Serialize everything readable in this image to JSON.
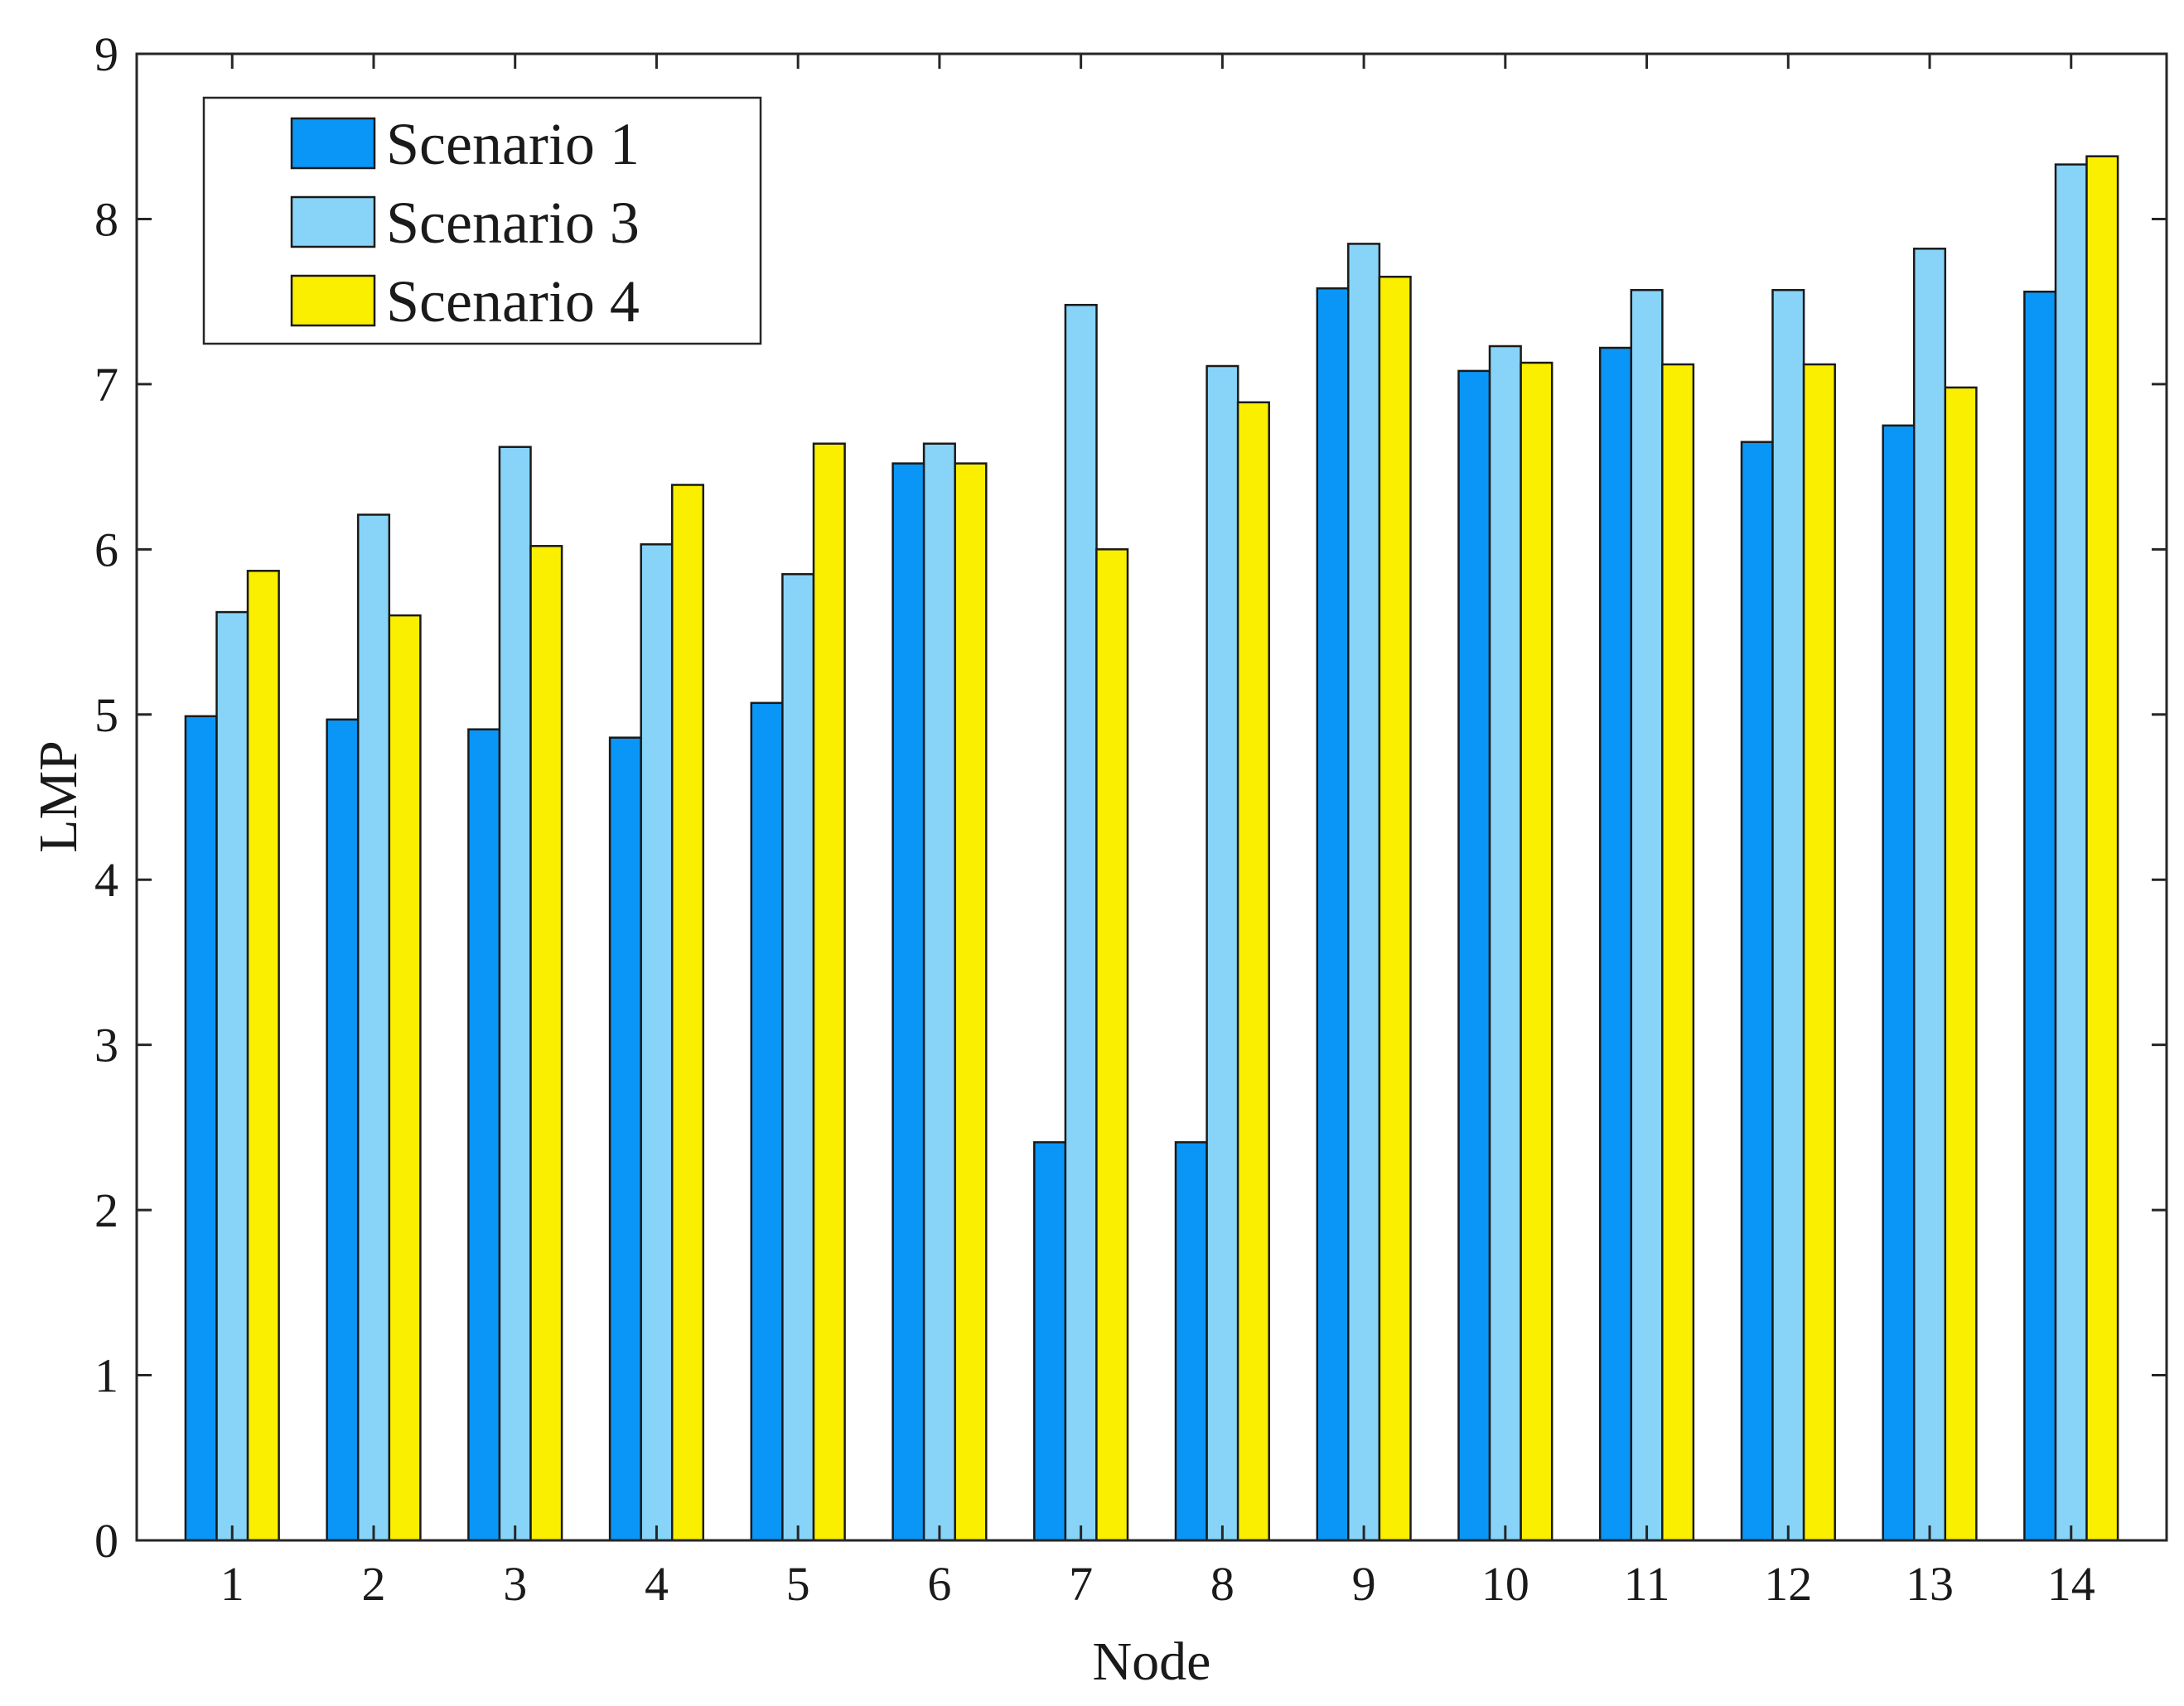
{
  "chart_data": {
    "type": "bar",
    "title": "",
    "xlabel": "Node",
    "ylabel": "LMP",
    "ylim": [
      0,
      9
    ],
    "yticks": [
      0,
      1,
      2,
      3,
      4,
      5,
      6,
      7,
      8,
      9
    ],
    "categories": [
      "1",
      "2",
      "3",
      "4",
      "5",
      "6",
      "7",
      "8",
      "9",
      "10",
      "11",
      "12",
      "13",
      "14"
    ],
    "grid": false,
    "legend_position": "top-left",
    "series": [
      {
        "name": "Scenario 1",
        "color": "#0a96f7",
        "values": [
          4.99,
          4.97,
          4.91,
          4.86,
          5.07,
          6.52,
          2.41,
          2.41,
          7.58,
          7.08,
          7.22,
          6.65,
          6.75,
          7.56
        ]
      },
      {
        "name": "Scenario 3",
        "color": "#87d4f8",
        "values": [
          5.62,
          6.21,
          6.62,
          6.03,
          5.85,
          6.64,
          7.48,
          7.11,
          7.85,
          7.23,
          7.57,
          7.57,
          7.82,
          8.33
        ]
      },
      {
        "name": "Scenario 4",
        "color": "#fbef00",
        "values": [
          5.87,
          5.6,
          6.02,
          6.39,
          6.64,
          6.52,
          6.0,
          6.89,
          7.65,
          7.13,
          7.12,
          7.12,
          6.98,
          8.38
        ]
      }
    ]
  }
}
